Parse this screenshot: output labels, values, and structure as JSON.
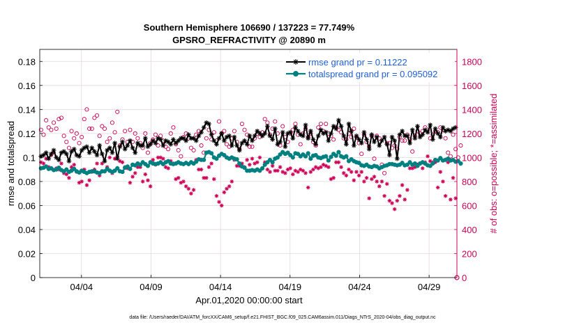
{
  "chart_data": {
    "type": "line",
    "title": "Southern Hemisphere 106690 / 137223 = 77.749%",
    "subtitle": "GPSRO_REFRACTIVITY @ 20890 m",
    "xlabel": "Apr.01,2020 00:00:00 start",
    "ylabel_left": "rmse and totalspread",
    "ylabel_right": "# of obs: o=possible; *=assimilated",
    "x_tick_labels": [
      "04/04",
      "04/09",
      "04/14",
      "04/19",
      "04/24",
      "04/29"
    ],
    "x_tick_days": [
      4,
      9,
      14,
      19,
      24,
      29
    ],
    "xlim": [
      1,
      31
    ],
    "ylim_left": [
      0,
      0.19
    ],
    "yticks_left": [
      "0",
      "0.02",
      "0.04",
      "0.06",
      "0.08",
      "0.1",
      "0.12",
      "0.14",
      "0.16",
      "0.18"
    ],
    "ylim_right": [
      0,
      1900
    ],
    "yticks_right": [
      "0",
      "200",
      "400",
      "600",
      "800",
      "1000",
      "1200",
      "1400",
      "1600",
      "1800"
    ],
    "grid": true,
    "legend_position": "top-right",
    "colors": {
      "rmse": "#000000",
      "spread": "#008080",
      "obs": "#cc0055"
    },
    "series": [
      {
        "name": "rmse grand pr = 0.11222",
        "axis": "left",
        "marker": "*",
        "values": [
          0.101,
          0.102,
          0.104,
          0.099,
          0.103,
          0.106,
          0.1,
          0.098,
          0.104,
          0.105,
          0.103,
          0.097,
          0.105,
          0.107,
          0.102,
          0.101,
          0.106,
          0.108,
          0.109,
          0.104,
          0.108,
          0.105,
          0.102,
          0.11,
          0.103,
          0.097,
          0.106,
          0.108,
          0.104,
          0.112,
          0.099,
          0.109,
          0.113,
          0.107,
          0.11,
          0.114,
          0.108,
          0.104,
          0.112,
          0.11,
          0.11,
          0.116,
          0.109,
          0.111,
          0.114,
          0.112,
          0.116,
          0.115,
          0.11,
          0.114,
          0.113,
          0.111,
          0.115,
          0.112,
          0.114,
          0.116,
          0.116,
          0.114,
          0.119,
          0.116,
          0.116,
          0.114,
          0.118,
          0.121,
          0.125,
          0.129,
          0.128,
          0.119,
          0.114,
          0.111,
          0.116,
          0.12,
          0.114,
          0.117,
          0.118,
          0.11,
          0.117,
          0.11,
          0.106,
          0.112,
          0.114,
          0.111,
          0.118,
          0.114,
          0.118,
          0.122,
          0.12,
          0.118,
          0.12,
          0.126,
          0.118,
          0.115,
          0.124,
          0.111,
          0.113,
          0.121,
          0.109,
          0.12,
          0.121,
          0.116,
          0.125,
          0.122,
          0.119,
          0.118,
          0.127,
          0.116,
          0.122,
          0.115,
          0.111,
          0.118,
          0.123,
          0.12,
          0.121,
          0.114,
          0.12,
          0.126,
          0.124,
          0.131,
          0.126,
          0.118,
          0.111,
          0.128,
          0.122,
          0.11,
          0.118,
          0.115,
          0.112,
          0.121,
          0.115,
          0.107,
          0.119,
          0.113,
          0.117,
          0.11,
          0.114,
          0.117,
          0.111,
          0.102,
          0.117,
          0.114,
          0.099,
          0.119,
          0.122,
          0.118,
          0.118,
          0.112,
          0.123,
          0.116,
          0.126,
          0.117,
          0.119,
          0.123,
          0.121,
          0.127,
          0.115,
          0.124,
          0.12,
          0.117,
          0.125,
          0.122,
          0.123,
          0.122,
          0.124,
          0.125
        ]
      },
      {
        "name": "totalspread grand pr = 0.095092",
        "axis": "left",
        "marker": "o",
        "values": [
          0.091,
          0.0915,
          0.0925,
          0.0905,
          0.091,
          0.0895,
          0.09,
          0.0915,
          0.0895,
          0.0885,
          0.09,
          0.088,
          0.089,
          0.0905,
          0.0885,
          0.0875,
          0.089,
          0.088,
          0.087,
          0.088,
          0.0885,
          0.0885,
          0.0875,
          0.087,
          0.0885,
          0.0885,
          0.0905,
          0.089,
          0.088,
          0.089,
          0.091,
          0.0885,
          0.088,
          0.0915,
          0.0925,
          0.0905,
          0.094,
          0.0935,
          0.095,
          0.094,
          0.096,
          0.0945,
          0.093,
          0.096,
          0.095,
          0.0945,
          0.095,
          0.096,
          0.0945,
          0.096,
          0.097,
          0.095,
          0.0945,
          0.095,
          0.096,
          0.095,
          0.0945,
          0.0955,
          0.0945,
          0.096,
          0.095,
          0.0965,
          0.0985,
          0.098,
          0.098,
          0.104,
          0.1045,
          0.1035,
          0.1,
          0.099,
          0.1015,
          0.103,
          0.102,
          0.1,
          0.099,
          0.1,
          0.099,
          0.0985,
          0.095,
          0.0925,
          0.0915,
          0.089,
          0.089,
          0.0895,
          0.089,
          0.09,
          0.089,
          0.091,
          0.094,
          0.096,
          0.098,
          0.096,
          0.099,
          0.1,
          0.1025,
          0.1045,
          0.103,
          0.104,
          0.102,
          0.1,
          0.1035,
          0.103,
          0.101,
          0.1025,
          0.101,
          0.1035,
          0.099,
          0.1015,
          0.102,
          0.1,
          0.0995,
          0.1005,
          0.101,
          0.0975,
          0.1005,
          0.103,
          0.1015,
          0.1045,
          0.101,
          0.1,
          0.101,
          0.097,
          0.0985,
          0.097,
          0.096,
          0.0955,
          0.0935,
          0.093,
          0.094,
          0.0925,
          0.092,
          0.093,
          0.0925,
          0.091,
          0.092,
          0.093,
          0.0935,
          0.0945,
          0.0945,
          0.094,
          0.0935,
          0.094,
          0.0955,
          0.0935,
          0.094,
          0.096,
          0.094,
          0.095,
          0.093,
          0.095,
          0.096,
          0.095,
          0.0935,
          0.093,
          0.095,
          0.098,
          0.0975,
          0.0995,
          0.0975,
          0.098,
          0.099,
          0.0975,
          0.098,
          0.0965,
          0.097,
          0.095
        ]
      },
      {
        "name": "possible",
        "axis": "right",
        "marker": "o",
        "values": [
          1230,
          1190,
          1310,
          1250,
          1230,
          1290,
          1240,
          1320,
          1330,
          1180,
          1130,
          1080,
          1220,
          1160,
          1200,
          1120,
          1170,
          1320,
          1400,
          1240,
          1240,
          1330,
          1350,
          1180,
          1260,
          1240,
          1130,
          1160,
          1290,
          1210,
          1380,
          1100,
          1150,
          1220,
          1130,
          1230,
          1130,
          1200,
          1160,
          1120,
          1080,
          1200,
          1040,
          1120,
          1150,
          1190,
          1100,
          1180,
          1140,
          1090,
          1070,
          1200,
          1250,
          1110,
          1060,
          1010,
          1170,
          1200,
          1160,
          1080,
          1060,
          1190,
          1220,
          1100,
          1040,
          1160,
          1230,
          1150,
          1210,
          1140,
          1300,
          1200,
          1220,
          1110,
          1090,
          1160,
          1220,
          1130,
          1070,
          1280,
          1230,
          1190,
          1090,
          1090,
          1160,
          1200,
          1170,
          1210,
          1320,
          1290,
          1190,
          1240,
          1300,
          1200,
          1100,
          1260,
          1170,
          1130,
          1200,
          1230,
          1280,
          1190,
          1110,
          1200,
          1240,
          1170,
          1200,
          1130,
          1100,
          1250,
          1280,
          1220,
          1280,
          1200,
          1180,
          1150,
          1250,
          1230,
          1210,
          1160,
          1150,
          1200,
          1170,
          1240,
          1170,
          1120,
          1030,
          1190,
          1130,
          1090,
          1180,
          990,
          1180,
          1160,
          940,
          870,
          1120,
          1120,
          1080,
          1100,
          1070,
          1170,
          1140,
          1140,
          1190,
          1150,
          1050,
          1180,
          1220,
          1200,
          1220,
          1250,
          1230,
          1160,
          1190,
          1220,
          1210,
          1250,
          1230,
          1160,
          1040,
          1010,
          1190,
          1070,
          1000,
          1100
        ]
      },
      {
        "name": "assimilated",
        "axis": "right",
        "marker": "*",
        "values": [
          960,
          950,
          990,
          920,
          1020,
          1040,
          910,
          900,
          950,
          870,
          860,
          830,
          920,
          940,
          880,
          790,
          800,
          900,
          770,
          810,
          880,
          900,
          950,
          850,
          950,
          970,
          920,
          1000,
          870,
          990,
          1010,
          970,
          960,
          920,
          910,
          790,
          840,
          870,
          920,
          920,
          800,
          860,
          810,
          760,
          980,
          940,
          1000,
          1000,
          990,
          920,
          910,
          970,
          950,
          820,
          830,
          790,
          800,
          760,
          740,
          700,
          730,
          980,
          900,
          900,
          830,
          830,
          920,
          950,
          820,
          680,
          630,
          600,
          710,
          740,
          760,
          800,
          980,
          930,
          930,
          950,
          920,
          980,
          940,
          990,
          950,
          960,
          1000,
          910,
          960,
          900,
          880,
          930,
          890,
          890,
          920,
          880,
          870,
          900,
          910,
          860,
          890,
          880,
          900,
          890,
          870,
          750,
          880,
          900,
          920,
          910,
          920,
          940,
          930,
          920,
          820,
          830,
          960,
          960,
          920,
          870,
          850,
          900,
          880,
          810,
          880,
          850,
          880,
          800,
          830,
          660,
          820,
          840,
          800,
          760,
          800,
          680,
          780,
          640,
          620,
          570,
          640,
          680,
          770,
          650,
          730,
          910,
          910,
          920,
          940,
          950,
          910,
          960,
          1010,
          970,
          960,
          960,
          750,
          880,
          800,
          680,
          960,
          650,
          830,
          660
        ]
      }
    ]
  },
  "footer": "data file: /Users/raeder/DAI/ATM_forcXX/CAM6_setup/f.e21.FHIST_BGC.f09_025.CAM6assim.011/Diags_NTrS_2020-04/obs_diag_output.nc"
}
